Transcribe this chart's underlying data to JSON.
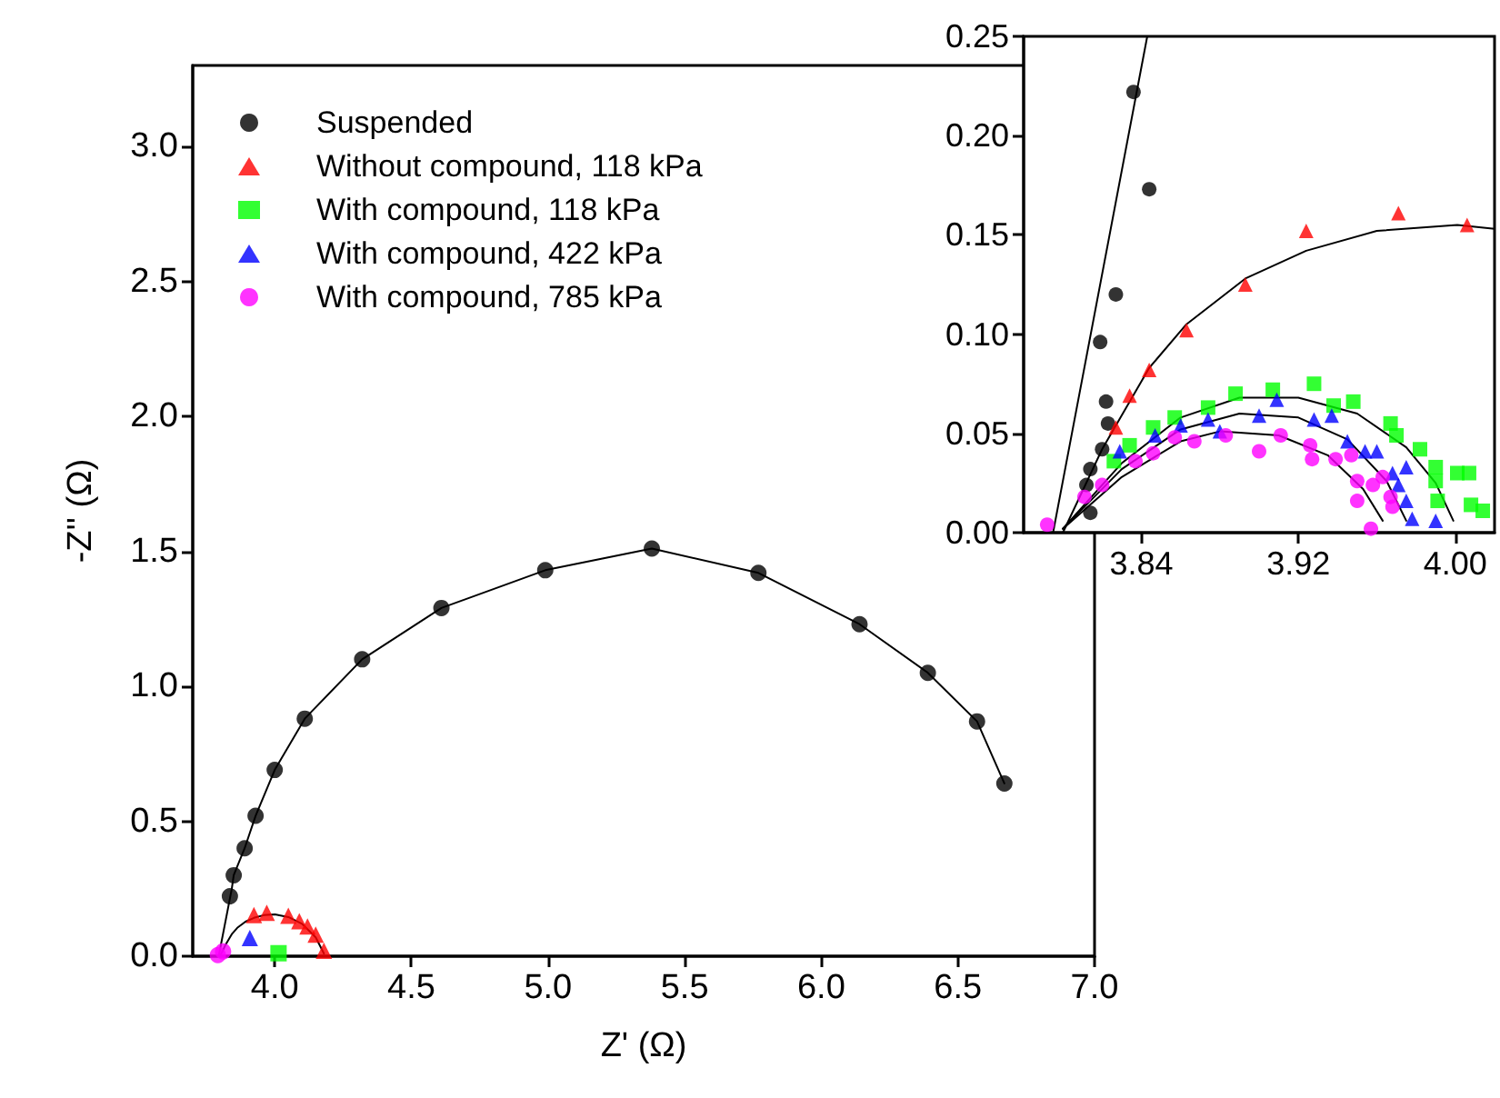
{
  "chart_data": [
    {
      "type": "scatter",
      "xlabel": "Z' (Ω)",
      "ylabel": "-Z'' (Ω)",
      "xlim": [
        3.7,
        7.0
      ],
      "ylim": [
        0,
        3.3
      ],
      "xticks": [
        {
          "value": 4,
          "label": "4.0"
        },
        4.5,
        {
          "value": 5,
          "label": "5.0"
        },
        5.5,
        {
          "value": 6,
          "label": "6.0"
        },
        6.5,
        {
          "value": 7,
          "label": "7.0"
        }
      ],
      "yticks": [
        {
          "value": 0,
          "label": "0.0"
        },
        0.5,
        {
          "value": 1,
          "label": "1.0"
        },
        1.5,
        {
          "value": 2,
          "label": "2.0"
        },
        2.5,
        {
          "value": 3,
          "label": "3.0"
        }
      ],
      "legend": "top left",
      "series": [
        {
          "name": "Suspended",
          "color": "#000000",
          "marker": "circle",
          "x": [
            3.836,
            3.85,
            3.89,
            3.93,
            4.0,
            4.11,
            4.32,
            4.61,
            4.99,
            5.38,
            5.77,
            6.14,
            6.39,
            6.57,
            6.67
          ],
          "values": [
            0.222,
            0.3,
            0.4,
            0.52,
            0.69,
            0.88,
            1.1,
            1.29,
            1.43,
            1.51,
            1.42,
            1.23,
            1.05,
            0.87,
            0.64
          ]
        },
        {
          "name": "Without compound, 118 kPa",
          "color": "#ff0000",
          "marker": "triangle",
          "x": [
            3.924,
            3.971,
            4.05,
            4.09,
            4.12,
            4.15,
            4.18
          ],
          "values": [
            0.152,
            0.161,
            0.15,
            0.13,
            0.11,
            0.08,
            0.02
          ]
        },
        {
          "name": "With compound, 118 kPa",
          "color": "#00ff00",
          "marker": "square",
          "x": [
            4.014
          ],
          "values": [
            0.011
          ]
        },
        {
          "name": "With compound, 422 kPa",
          "color": "#0000ff",
          "marker": "triangle",
          "x": [
            3.909
          ],
          "values": [
            0.067
          ]
        },
        {
          "name": "With compound, 785 kPa",
          "color": "#ff00ff",
          "marker": "circle",
          "x": [
            3.792,
            3.811
          ],
          "values": [
            0.004,
            0.018
          ]
        },
        {
          "type": "line",
          "color": "#000000",
          "marker": "none",
          "x": [
            3.795,
            3.843,
            3.85,
            3.89,
            3.93,
            4.0,
            4.11,
            4.32,
            4.61,
            4.99,
            5.38,
            5.77,
            6.14,
            6.39,
            6.57,
            6.67
          ],
          "values": [
            0,
            0.25,
            0.3,
            0.4,
            0.52,
            0.69,
            0.88,
            1.1,
            1.29,
            1.43,
            1.51,
            1.42,
            1.23,
            1.05,
            0.87,
            0.64
          ]
        },
        {
          "type": "line",
          "color": "#000000",
          "marker": "none",
          "x": [
            3.8,
            3.82,
            3.844,
            3.863,
            3.893,
            3.924,
            3.96,
            4.001,
            4.05,
            4.1,
            4.15,
            4.18
          ],
          "values": [
            0.0,
            0.042,
            0.083,
            0.105,
            0.128,
            0.142,
            0.152,
            0.155,
            0.145,
            0.12,
            0.07,
            0.01
          ]
        }
      ]
    },
    {
      "type": "scatter",
      "xlim": [
        3.78,
        4.02
      ],
      "ylim": [
        0,
        0.25
      ],
      "xticks": [
        3.84,
        3.92,
        {
          "value": 4,
          "label": "4.00"
        }
      ],
      "yticks": [
        {
          "value": 0,
          "label": "0.00"
        },
        0.05,
        {
          "value": 0.1,
          "label": "0.10"
        },
        0.15,
        {
          "value": 0.2,
          "label": "0.20"
        },
        0.25
      ],
      "series": [
        {
          "color": "#000000",
          "marker": "circle",
          "x": [
            3.814,
            3.812,
            3.814,
            3.82,
            3.823,
            3.822,
            3.819,
            3.827,
            3.844,
            3.836
          ],
          "values": [
            0.01,
            0.024,
            0.032,
            0.042,
            0.055,
            0.066,
            0.096,
            0.12,
            0.173,
            0.222
          ]
        },
        {
          "color": "#ff0000",
          "marker": "triangle",
          "x": [
            3.827,
            3.834,
            3.844,
            3.863,
            3.893,
            3.924,
            3.971,
            4.006
          ],
          "values": [
            0.053,
            0.069,
            0.082,
            0.102,
            0.125,
            0.152,
            0.161,
            0.155
          ]
        },
        {
          "color": "#00ff00",
          "marker": "square",
          "x": [
            3.826,
            3.834,
            3.846,
            3.857,
            3.874,
            3.888,
            3.907,
            3.928,
            3.938,
            3.948,
            3.967,
            3.97,
            3.982,
            3.99,
            3.99,
            4.001,
            4.007,
            3.991,
            4.008,
            4.014
          ],
          "values": [
            0.036,
            0.044,
            0.053,
            0.058,
            0.063,
            0.07,
            0.072,
            0.075,
            0.064,
            0.066,
            0.055,
            0.049,
            0.042,
            0.033,
            0.026,
            0.03,
            0.03,
            0.016,
            0.014,
            0.011
          ]
        },
        {
          "color": "#0000ff",
          "marker": "triangle",
          "x": [
            3.829,
            3.847,
            3.86,
            3.874,
            3.88,
            3.9,
            3.909,
            3.928,
            3.937,
            3.945,
            3.954,
            3.96,
            3.968,
            3.971,
            3.975,
            3.975,
            3.978,
            3.99
          ],
          "values": [
            0.041,
            0.049,
            0.054,
            0.057,
            0.051,
            0.059,
            0.067,
            0.057,
            0.059,
            0.046,
            0.041,
            0.041,
            0.03,
            0.024,
            0.033,
            0.016,
            0.007,
            0.006
          ]
        },
        {
          "color": "#ff00ff",
          "marker": "circle",
          "x": [
            3.792,
            3.811,
            3.82,
            3.837,
            3.846,
            3.857,
            3.867,
            3.883,
            3.9,
            3.911,
            3.926,
            3.927,
            3.939,
            3.947,
            3.95,
            3.958,
            3.95,
            3.967,
            3.968,
            3.963,
            3.957
          ],
          "values": [
            0.004,
            0.018,
            0.024,
            0.036,
            0.04,
            0.048,
            0.046,
            0.049,
            0.041,
            0.049,
            0.044,
            0.037,
            0.037,
            0.039,
            0.026,
            0.024,
            0.016,
            0.018,
            0.013,
            0.028,
            0.002
          ]
        },
        {
          "type": "line",
          "color": "#000000",
          "marker": "none",
          "x": [
            3.795,
            3.843
          ],
          "values": [
            0,
            0.25
          ]
        },
        {
          "type": "line",
          "color": "#000000",
          "marker": "none",
          "x": [
            3.8,
            3.82,
            3.844,
            3.863,
            3.893,
            3.924,
            3.96,
            4.001,
            4.02
          ],
          "values": [
            0.0,
            0.042,
            0.083,
            0.105,
            0.128,
            0.142,
            0.152,
            0.155,
            0.153
          ]
        },
        {
          "type": "line",
          "color": "#000000",
          "marker": "none",
          "x": [
            3.8,
            3.83,
            3.86,
            3.89,
            3.92,
            3.95,
            3.975,
            3.99,
            3.999
          ],
          "values": [
            0.002,
            0.035,
            0.058,
            0.068,
            0.068,
            0.06,
            0.043,
            0.025,
            0.006
          ]
        },
        {
          "type": "line",
          "color": "#000000",
          "marker": "none",
          "x": [
            3.8,
            3.83,
            3.86,
            3.89,
            3.92,
            3.945,
            3.965,
            3.975
          ],
          "values": [
            0.002,
            0.032,
            0.052,
            0.06,
            0.058,
            0.047,
            0.026,
            0.006
          ]
        },
        {
          "type": "line",
          "color": "#000000",
          "marker": "none",
          "x": [
            3.8,
            3.83,
            3.86,
            3.88,
            3.91,
            3.935,
            3.953,
            3.963
          ],
          "values": [
            0.002,
            0.028,
            0.046,
            0.051,
            0.049,
            0.039,
            0.022,
            0.006
          ]
        }
      ]
    }
  ]
}
